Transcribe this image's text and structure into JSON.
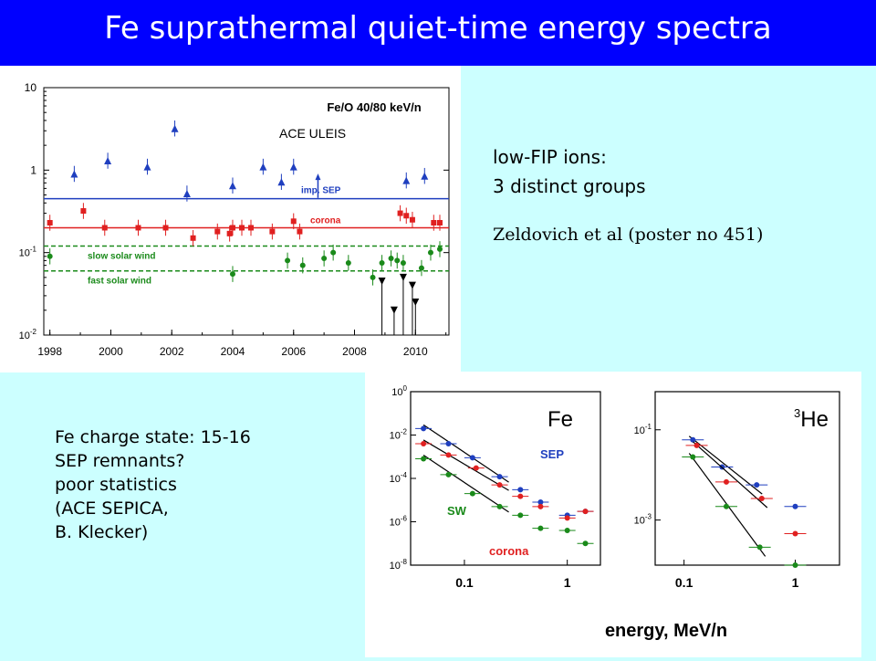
{
  "slide": {
    "title": "Fe suprathermal quiet-time energy spectra",
    "low_fip": [
      "low-FIP ions:",
      "3 distinct groups"
    ],
    "reference": "Zeldovich et al (poster no 451)",
    "charge_notes": [
      "Fe charge state: 15-16",
      "SEP remnants?",
      "poor statistics",
      "(ACE SEPICA,",
      "B. Klecker)"
    ]
  },
  "chart_data": [
    {
      "type": "scatter",
      "title": "Fe/O   40/80 keV/n",
      "instrument_label": "ACE ULEIS",
      "y_scale": "log",
      "ylim": [
        0.01,
        10
      ],
      "xlim": [
        1997.8,
        2011.1
      ],
      "y_ticks": [
        "10",
        "1",
        "10-1",
        "10-2"
      ],
      "x_ticks": [
        "1998",
        "2000",
        "2002",
        "2004",
        "2006",
        "2008",
        "2010"
      ],
      "reference_lines": [
        {
          "name": "imp. SEP",
          "y": 0.45,
          "style": "solid",
          "color": "#1f3fbf"
        },
        {
          "name": "corona",
          "y": 0.2,
          "style": "solid",
          "color": "#e02020"
        },
        {
          "name": "slow solar wind",
          "y": 0.12,
          "style": "dashed",
          "color": "#1a8a1a"
        },
        {
          "name": "fast solar wind",
          "y": 0.06,
          "style": "dashed",
          "color": "#1a8a1a"
        }
      ],
      "series": [
        {
          "color": "#1f3fbf",
          "marker": "triangle",
          "x": [
            1998.8,
            1999.9,
            2001.2,
            2002.1,
            2002.5,
            2004.0,
            2005.0,
            2005.6,
            2006.0,
            2009.7,
            2010.3
          ],
          "y": [
            0.9,
            1.3,
            1.1,
            3.2,
            0.52,
            0.65,
            1.1,
            0.72,
            1.1,
            0.75,
            0.85
          ]
        },
        {
          "color": "#e02020",
          "marker": "square",
          "x": [
            1998.0,
            1999.1,
            1999.8,
            2000.9,
            2001.8,
            2002.7,
            2003.5,
            2003.9,
            2004.0,
            2004.3,
            2004.6,
            2005.3,
            2006.0,
            2006.2,
            2009.5,
            2009.7,
            2009.9,
            2010.6,
            2010.8
          ],
          "y": [
            0.23,
            0.32,
            0.2,
            0.2,
            0.2,
            0.15,
            0.18,
            0.17,
            0.2,
            0.2,
            0.2,
            0.18,
            0.24,
            0.18,
            0.3,
            0.28,
            0.25,
            0.23,
            0.23
          ]
        },
        {
          "color": "#1a8a1a",
          "marker": "circle",
          "x": [
            1998.0,
            2004.0,
            2005.8,
            2006.3,
            2007.0,
            2007.3,
            2007.8,
            2008.6,
            2008.9,
            2009.2,
            2009.4,
            2009.6,
            2010.2,
            2010.5,
            2010.8
          ],
          "y": [
            0.09,
            0.055,
            0.08,
            0.07,
            0.085,
            0.1,
            0.075,
            0.05,
            0.075,
            0.085,
            0.08,
            0.075,
            0.065,
            0.1,
            0.11
          ]
        },
        {
          "color": "#000000",
          "marker": "down-triangle",
          "x": [
            2008.9,
            2009.3,
            2009.6,
            2009.9,
            2010.0
          ],
          "y": [
            0.045,
            0.02,
            0.05,
            0.04,
            0.025
          ]
        }
      ]
    },
    {
      "type": "scatter",
      "title": "Fe",
      "xlabel": "energy, MeV/n",
      "x_scale": "log",
      "y_scale": "log",
      "xlim": [
        0.03,
        2.1
      ],
      "ylim": [
        1e-08,
        1
      ],
      "y_ticks": [
        "10^0",
        "10^-2",
        "10^-4",
        "10^-6",
        "10^-8"
      ],
      "x_ticks": [
        "0.1",
        "1"
      ],
      "series": [
        {
          "name": "SEP",
          "color": "#1f3fbf",
          "x": [
            0.04,
            0.07,
            0.12,
            0.22,
            0.35,
            0.55,
            1.0,
            1.5
          ],
          "y": [
            0.02,
            0.004,
            0.0009,
            0.00012,
            3e-05,
            8e-06,
            2e-06,
            3e-06
          ]
        },
        {
          "name": "corona",
          "color": "#e02020",
          "x": [
            0.04,
            0.07,
            0.13,
            0.22,
            0.35,
            0.55,
            1.0,
            1.5
          ],
          "y": [
            0.004,
            0.0012,
            0.0003,
            5e-05,
            1.5e-05,
            5e-06,
            1.5e-06,
            3e-06
          ]
        },
        {
          "name": "SW",
          "color": "#1a8a1a",
          "x": [
            0.04,
            0.07,
            0.12,
            0.22,
            0.35,
            0.55,
            1.0,
            1.5
          ],
          "y": [
            0.0008,
            0.00015,
            2e-05,
            5e-06,
            2e-06,
            5e-07,
            4e-07,
            1e-07
          ]
        }
      ]
    },
    {
      "type": "scatter",
      "title": "3He",
      "x_scale": "log",
      "y_scale": "log",
      "xlim": [
        0.055,
        2.5
      ],
      "ylim": [
        0.0001,
        0.7
      ],
      "y_ticks": [
        "10^-1",
        "10^-3"
      ],
      "x_ticks": [
        "0.1",
        "1"
      ],
      "series": [
        {
          "color": "#1f3fbf",
          "x": [
            0.12,
            0.22,
            0.45,
            1.0
          ],
          "y": [
            0.06,
            0.015,
            0.006,
            0.002
          ]
        },
        {
          "color": "#e02020",
          "x": [
            0.13,
            0.24,
            0.5,
            1.0
          ],
          "y": [
            0.045,
            0.007,
            0.003,
            0.0005
          ]
        },
        {
          "color": "#1a8a1a",
          "x": [
            0.12,
            0.24,
            0.48,
            1.0
          ],
          "y": [
            0.025,
            0.002,
            0.00025,
            0.0001
          ]
        }
      ]
    }
  ]
}
